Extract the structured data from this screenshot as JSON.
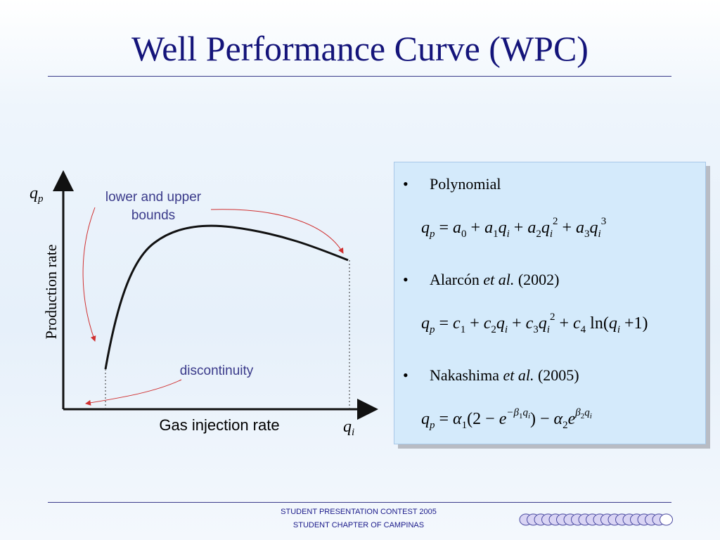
{
  "header": {
    "title": "Well Performance Curve (WPC)"
  },
  "figure": {
    "y_symbol": "q",
    "y_symbol_sub": "p",
    "y_axis_label": "Production rate",
    "x_axis_label": "Gas injection rate",
    "x_symbol": "q",
    "x_symbol_sub": "i",
    "annotation_bounds_line1": "lower and upper",
    "annotation_bounds_line2": "bounds",
    "annotation_discontinuity": "discontinuity"
  },
  "bullets": [
    {
      "parts": [
        {
          "text": "Polynomial"
        }
      ],
      "equation": [
        [
          "q",
          "it"
        ],
        [
          "p",
          "sub"
        ],
        [
          " = ",
          "rm"
        ],
        [
          "a",
          "it"
        ],
        [
          "0",
          "sub"
        ],
        [
          " + ",
          "rm"
        ],
        [
          "a",
          "it"
        ],
        [
          "1",
          "sub"
        ],
        [
          "q",
          "it"
        ],
        [
          "i",
          "sub"
        ],
        [
          " + ",
          "rm"
        ],
        [
          "a",
          "it"
        ],
        [
          "2",
          "sub"
        ],
        [
          "q",
          "it"
        ],
        [
          "i",
          "sub"
        ],
        [
          "2",
          "sup"
        ],
        [
          " + ",
          "rm"
        ],
        [
          "a",
          "it"
        ],
        [
          "3",
          "sub"
        ],
        [
          "q",
          "it"
        ],
        [
          "i",
          "sub"
        ],
        [
          "3",
          "sup"
        ]
      ]
    },
    {
      "parts": [
        {
          "text": "Alarcón "
        },
        {
          "text": "et al.",
          "italic": true
        },
        {
          "text": " (2002)"
        }
      ],
      "equation": [
        [
          "q",
          "it"
        ],
        [
          "p",
          "sub"
        ],
        [
          " = ",
          "rm"
        ],
        [
          "c",
          "it"
        ],
        [
          "1",
          "sub"
        ],
        [
          " + ",
          "rm"
        ],
        [
          "c",
          "it"
        ],
        [
          "2",
          "sub"
        ],
        [
          "q",
          "it"
        ],
        [
          "i",
          "sub"
        ],
        [
          " + ",
          "rm"
        ],
        [
          "c",
          "it"
        ],
        [
          "3",
          "sub"
        ],
        [
          "q",
          "it"
        ],
        [
          "i",
          "sub"
        ],
        [
          "2",
          "sup"
        ],
        [
          " + ",
          "rm"
        ],
        [
          "c",
          "it"
        ],
        [
          "4",
          "sub"
        ],
        [
          " ln(",
          "rm"
        ],
        [
          "q",
          "it"
        ],
        [
          "i",
          "sub"
        ],
        [
          " +1)",
          "rm"
        ]
      ]
    },
    {
      "parts": [
        {
          "text": "Nakashima "
        },
        {
          "text": "et al.",
          "italic": true
        },
        {
          "text": " (2005)"
        }
      ],
      "equation": [
        [
          "q",
          "it"
        ],
        [
          "p",
          "sub"
        ],
        [
          " = ",
          "rm"
        ],
        [
          "α",
          "it"
        ],
        [
          "1",
          "sub"
        ],
        [
          "(2 − ",
          "rm"
        ],
        [
          "e",
          "it"
        ],
        [
          "−β",
          "sup"
        ],
        [
          "1",
          "supsub"
        ],
        [
          "q",
          "sup"
        ],
        [
          "i",
          "supsub"
        ],
        [
          ") − ",
          "rm"
        ],
        [
          "α",
          "it"
        ],
        [
          "2",
          "sub"
        ],
        [
          "e",
          "it"
        ],
        [
          "β",
          "sup"
        ],
        [
          "2",
          "supsub"
        ],
        [
          "q",
          "sup"
        ],
        [
          "i",
          "supsub"
        ]
      ]
    }
  ],
  "footer": {
    "line1": "STUDENT PRESENTATION CONTEST 2005",
    "line2": "STUDENT CHAPTER OF CAMPINAS"
  }
}
